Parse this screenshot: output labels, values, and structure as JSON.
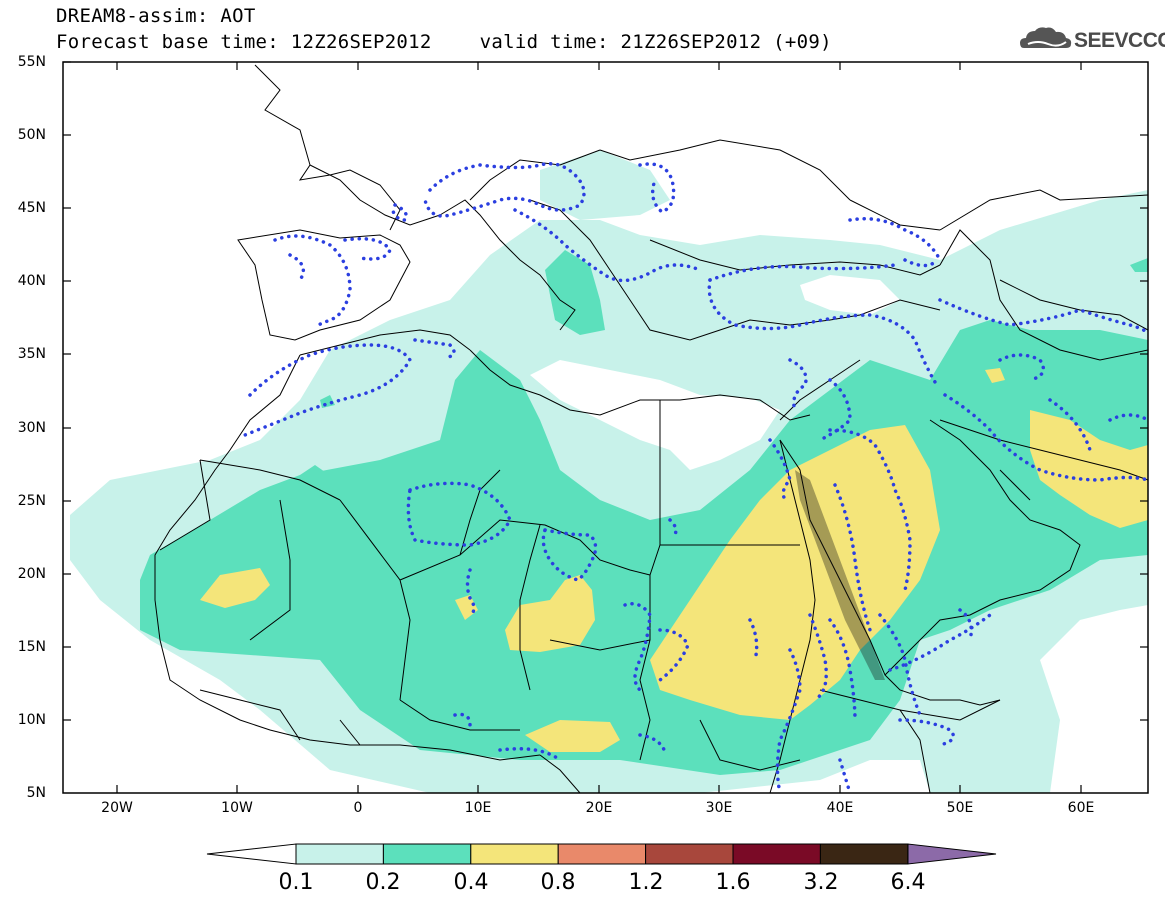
{
  "header": {
    "title": "DREAM8-assim: AOT",
    "base_time": "Forecast base time: 12Z26SEP2012",
    "valid_time": "valid time: 21Z26SEP2012 (+09)"
  },
  "logo": {
    "text": "SEEVCCC",
    "icon": "cloud-icon"
  },
  "map": {
    "lat_range": [
      5,
      55
    ],
    "lon_range": [
      -25,
      65
    ],
    "lat_labels": [
      "55N",
      "50N",
      "45N",
      "40N",
      "35N",
      "30N",
      "25N",
      "20N",
      "15N",
      "10N",
      "5N"
    ],
    "lon_labels": [
      "20W",
      "10W",
      "0",
      "10E",
      "20E",
      "30E",
      "40E",
      "50E",
      "60E"
    ]
  },
  "legend": {
    "labels": [
      "0.1",
      "0.2",
      "0.4",
      "0.8",
      "1.2",
      "1.6",
      "3.2",
      "6.4"
    ],
    "colors": [
      "#c8f2ea",
      "#5ce0bc",
      "#f4e57a",
      "#e9896a",
      "#a8473c",
      "#7a0a26",
      "#3a2614",
      "#8c6aa8"
    ],
    "under_color": "#ffffff"
  },
  "colors": {
    "aot_01": "#c8f2ea",
    "aot_02": "#5ce0bc",
    "aot_04": "#f4e57a",
    "overlay_dots": "#2b3fe0",
    "coastline": "#000000"
  }
}
